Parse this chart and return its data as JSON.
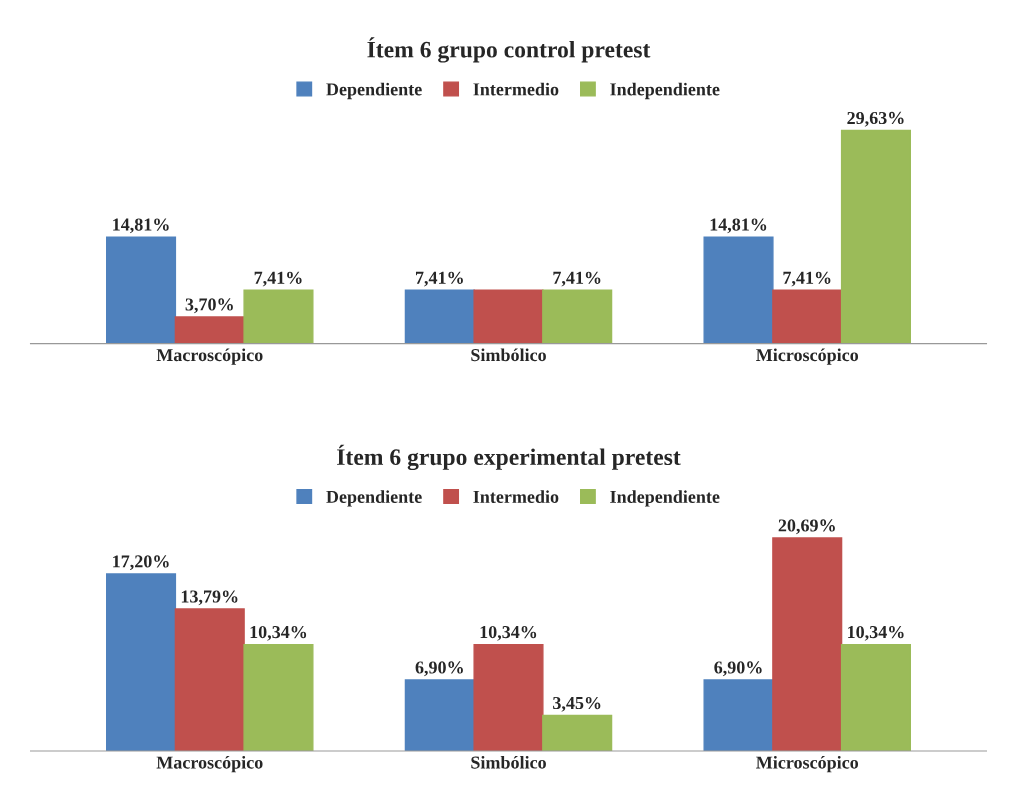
{
  "chart_data": [
    {
      "type": "bar",
      "title": "Ítem 6 grupo control pretest",
      "categories": [
        "Macroscópico",
        "Simbólico",
        "Microscópico"
      ],
      "legend": "top",
      "series": [
        {
          "name": "Dependiente",
          "color": "#4f81bd",
          "values": [
            14.81,
            7.41,
            14.81
          ],
          "value_labels": [
            "14,81%",
            "7,41%",
            "14,81%"
          ]
        },
        {
          "name": "Intermedio",
          "color": "#c0504d",
          "values": [
            3.7,
            7.41,
            7.41
          ],
          "value_labels": [
            "3,70%",
            null,
            "7,41%"
          ]
        },
        {
          "name": "Independiente",
          "color": "#9bbb59",
          "values": [
            7.41,
            7.41,
            29.63
          ],
          "value_labels": [
            "7,41%",
            "7,41%",
            "29,63%"
          ]
        }
      ]
    },
    {
      "type": "bar",
      "title": "Ítem 6 grupo experimental pretest",
      "categories": [
        "Macroscópico",
        "Simbólico",
        "Microscópico"
      ],
      "legend": "top",
      "series": [
        {
          "name": "Dependiente",
          "color": "#4f81bd",
          "values": [
            17.2,
            6.9,
            6.9
          ],
          "value_labels": [
            "17,20%",
            "6,90%",
            "6,90%"
          ]
        },
        {
          "name": "Intermedio",
          "color": "#c0504d",
          "values": [
            13.79,
            10.34,
            20.69
          ],
          "value_labels": [
            "13,79%",
            "10,34%",
            "20,69%"
          ]
        },
        {
          "name": "Independiente",
          "color": "#9bbb59",
          "values": [
            10.34,
            3.45,
            10.34
          ],
          "value_labels": [
            "10,34%",
            "3,45%",
            "10,34%"
          ]
        }
      ]
    }
  ]
}
